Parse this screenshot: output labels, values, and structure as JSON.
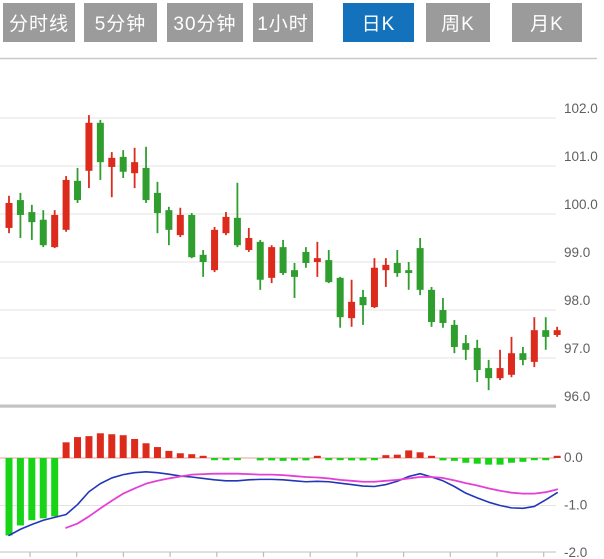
{
  "tabs": [
    {
      "name": "tab-timeline",
      "label": "分时线",
      "active": false
    },
    {
      "name": "tab-5min",
      "label": "5分钟",
      "active": false
    },
    {
      "name": "tab-30min",
      "label": "30分钟",
      "active": false
    },
    {
      "name": "tab-1hour",
      "label": "1小时",
      "active": false
    },
    {
      "name": "tab-daily",
      "label": "日K",
      "active": true
    },
    {
      "name": "tab-weekly",
      "label": "周K",
      "active": false
    },
    {
      "name": "tab-monthly",
      "label": "月K",
      "active": false
    }
  ],
  "colors": {
    "tab_bg": "#9b9b9b",
    "tab_active_bg": "#1471bb",
    "tab_text": "#ffffff",
    "candle_up": "#dc2a1c",
    "candle_down": "#2f9e2f",
    "hist_up": "#dc2a1c",
    "hist_down": "#17d417",
    "dif_line": "#2236b8",
    "dea_line": "#e43fd7",
    "grid": "#e3e3e3",
    "top_border": "#c9c9c9",
    "separator": "#c3c3c3",
    "zero_line": "#e89b9b",
    "axis_text": "#5f5f5f"
  },
  "chart_data": {
    "type": "candlestick",
    "title": "",
    "price_axis": {
      "ticks": [
        "102.0",
        "101.0",
        "100.0",
        "99.0",
        "98.0",
        "97.0",
        "96.0"
      ],
      "tick_values": [
        102.0,
        101.0,
        100.0,
        99.0,
        98.0,
        97.0,
        96.0
      ],
      "range": [
        95.9,
        103.2
      ],
      "side": "right",
      "grid": true
    },
    "candles_ohlc": [
      [
        99.71,
        100.38,
        99.6,
        100.23
      ],
      [
        100.29,
        100.44,
        99.5,
        99.98
      ],
      [
        100.04,
        100.19,
        99.46,
        99.83
      ],
      [
        99.88,
        100.08,
        99.31,
        99.35
      ],
      [
        99.31,
        100.08,
        99.29,
        99.98
      ],
      [
        99.67,
        100.79,
        99.63,
        100.71
      ],
      [
        100.69,
        100.96,
        100.23,
        100.29
      ],
      [
        100.9,
        102.06,
        100.54,
        101.9
      ],
      [
        101.9,
        101.96,
        100.71,
        101.08
      ],
      [
        100.98,
        101.29,
        100.35,
        101.17
      ],
      [
        101.19,
        101.33,
        100.75,
        100.88
      ],
      [
        100.85,
        101.38,
        100.54,
        101.08
      ],
      [
        100.96,
        101.4,
        100.23,
        100.29
      ],
      [
        100.44,
        100.67,
        99.6,
        100.02
      ],
      [
        100.08,
        100.15,
        99.35,
        99.67
      ],
      [
        99.56,
        100.13,
        99.52,
        99.98
      ],
      [
        99.98,
        100.02,
        99.08,
        99.1
      ],
      [
        99.15,
        99.25,
        98.69,
        99.0
      ],
      [
        98.83,
        99.73,
        98.79,
        99.67
      ],
      [
        99.6,
        100.04,
        99.56,
        99.94
      ],
      [
        99.92,
        100.65,
        99.31,
        99.35
      ],
      [
        99.25,
        99.71,
        99.21,
        99.5
      ],
      [
        99.42,
        99.46,
        98.42,
        98.63
      ],
      [
        98.67,
        99.35,
        98.56,
        99.31
      ],
      [
        99.31,
        99.46,
        98.73,
        98.77
      ],
      [
        98.83,
        98.98,
        98.25,
        98.69
      ],
      [
        99.21,
        99.31,
        98.88,
        98.98
      ],
      [
        99.0,
        99.42,
        98.69,
        99.08
      ],
      [
        99.04,
        99.25,
        98.56,
        98.58
      ],
      [
        98.67,
        98.69,
        97.63,
        97.85
      ],
      [
        97.83,
        98.63,
        97.65,
        98.17
      ],
      [
        98.27,
        98.42,
        97.69,
        98.1
      ],
      [
        98.06,
        99.08,
        98.04,
        98.88
      ],
      [
        98.83,
        99.08,
        98.48,
        98.94
      ],
      [
        98.98,
        99.25,
        98.69,
        98.77
      ],
      [
        98.83,
        99.0,
        98.42,
        98.77
      ],
      [
        99.29,
        99.5,
        98.31,
        98.42
      ],
      [
        98.42,
        98.48,
        97.65,
        97.75
      ],
      [
        98.0,
        98.25,
        97.63,
        97.73
      ],
      [
        97.69,
        97.79,
        97.1,
        97.23
      ],
      [
        97.31,
        97.48,
        96.96,
        97.17
      ],
      [
        97.21,
        97.38,
        96.5,
        96.75
      ],
      [
        96.79,
        96.96,
        96.33,
        96.58
      ],
      [
        96.58,
        97.17,
        96.54,
        96.79
      ],
      [
        96.65,
        97.44,
        96.6,
        97.1
      ],
      [
        97.1,
        97.23,
        96.85,
        96.96
      ],
      [
        96.92,
        97.85,
        96.81,
        97.58
      ],
      [
        97.58,
        97.85,
        97.17,
        97.44
      ],
      [
        97.48,
        97.65,
        97.44,
        97.58
      ]
    ],
    "macd": {
      "axis_ticks": [
        "0.0",
        "-1.0",
        "-2.0"
      ],
      "axis_tick_values": [
        0.0,
        -1.0,
        -2.0
      ],
      "range": [
        -2.1,
        0.8
      ],
      "hist": [
        -1.63,
        -1.42,
        -1.31,
        -1.27,
        -1.23,
        0.33,
        0.44,
        0.46,
        0.52,
        0.5,
        0.48,
        0.4,
        0.31,
        0.23,
        0.15,
        0.1,
        0.08,
        0.03,
        -0.03,
        -0.04,
        -0.02,
        0.0,
        -0.05,
        -0.05,
        -0.06,
        -0.05,
        -0.05,
        0.02,
        -0.02,
        -0.04,
        -0.05,
        -0.05,
        -0.02,
        0.06,
        0.07,
        0.16,
        0.12,
        0.04,
        -0.05,
        -0.06,
        -0.1,
        -0.12,
        -0.14,
        -0.14,
        -0.1,
        -0.08,
        -0.04,
        -0.03,
        0.03
      ],
      "dif": [
        -1.63,
        -1.5,
        -1.4,
        -1.31,
        -1.25,
        -1.19,
        -0.98,
        -0.71,
        -0.54,
        -0.42,
        -0.35,
        -0.31,
        -0.29,
        -0.31,
        -0.34,
        -0.38,
        -0.4,
        -0.43,
        -0.46,
        -0.48,
        -0.48,
        -0.46,
        -0.45,
        -0.45,
        -0.46,
        -0.48,
        -0.5,
        -0.49,
        -0.5,
        -0.53,
        -0.56,
        -0.59,
        -0.6,
        -0.56,
        -0.49,
        -0.39,
        -0.33,
        -0.4,
        -0.48,
        -0.6,
        -0.74,
        -0.84,
        -0.93,
        -1.0,
        -1.05,
        -1.06,
        -1.02,
        -0.88,
        -0.73
      ],
      "dea": [
        null,
        null,
        null,
        null,
        null,
        -1.47,
        -1.38,
        -1.23,
        -1.06,
        -0.9,
        -0.75,
        -0.64,
        -0.54,
        -0.48,
        -0.43,
        -0.39,
        -0.35,
        -0.34,
        -0.33,
        -0.33,
        -0.33,
        -0.34,
        -0.35,
        -0.35,
        -0.36,
        -0.38,
        -0.4,
        -0.41,
        -0.43,
        -0.46,
        -0.48,
        -0.5,
        -0.5,
        -0.48,
        -0.46,
        -0.43,
        -0.4,
        -0.4,
        -0.42,
        -0.47,
        -0.53,
        -0.58,
        -0.64,
        -0.69,
        -0.73,
        -0.75,
        -0.75,
        -0.72,
        -0.66
      ]
    }
  }
}
